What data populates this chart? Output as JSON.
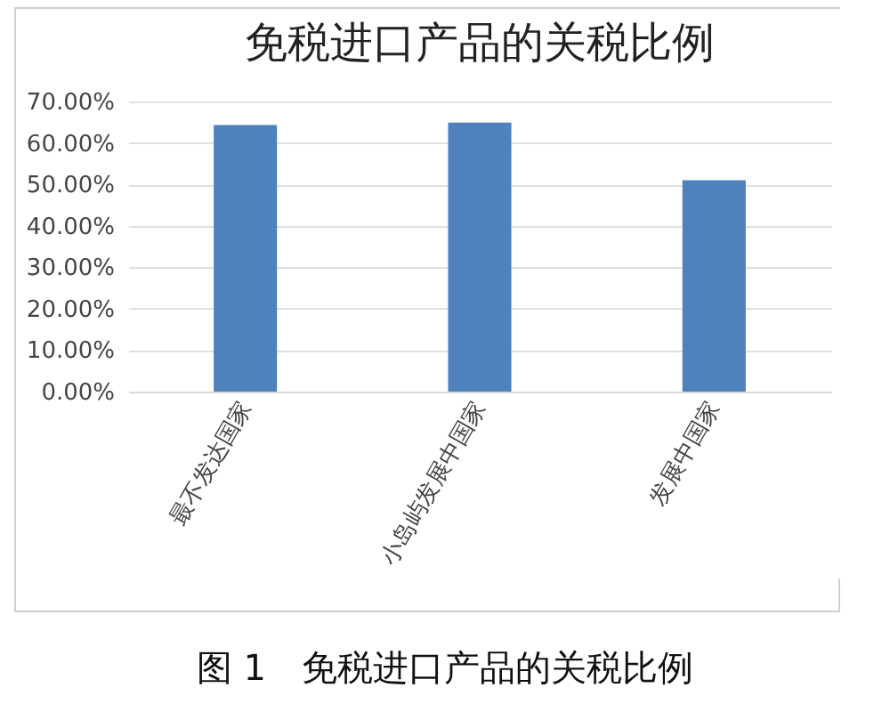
{
  "chart_data": {
    "type": "bar",
    "title": "免税进口产品的关税比例",
    "categories": [
      "最不发达国家",
      "小岛屿发展中国家",
      "发展中国家"
    ],
    "values": [
      64.3,
      64.9,
      51.0
    ],
    "color": "#4f81bd",
    "ylim": [
      0,
      70
    ],
    "yticks": [
      {
        "value": 0,
        "label": "0.00%"
      },
      {
        "value": 10,
        "label": "10.00%"
      },
      {
        "value": 20,
        "label": "20.00%"
      },
      {
        "value": 30,
        "label": "30.00%"
      },
      {
        "value": 40,
        "label": "40.00%"
      },
      {
        "value": 50,
        "label": "50.00%"
      },
      {
        "value": 60,
        "label": "60.00%"
      },
      {
        "value": 70,
        "label": "70.00%"
      }
    ],
    "grid": "y",
    "annotations": [
      "图 1　免税进口产品的关税比例"
    ]
  }
}
